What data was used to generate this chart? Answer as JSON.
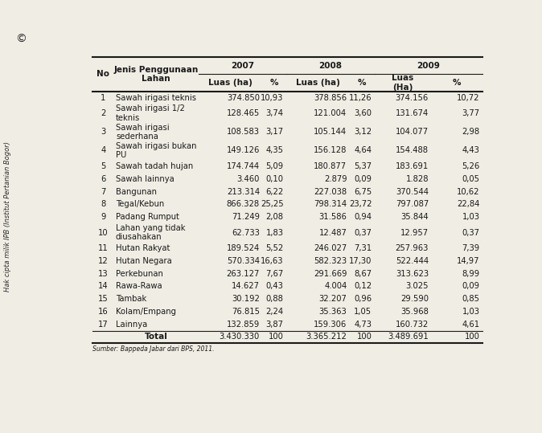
{
  "watermark": "Hak cipta milik IPB (Institut Pertanian Bogor)",
  "copyright_symbol": "©",
  "col_headers_mid": [
    "No",
    "Jenis Penggunaan\nLahan",
    "Luas (ha)",
    "%",
    "Luas (ha)",
    "%",
    "Luas\n(Ha)",
    "%"
  ],
  "rows": [
    [
      "1",
      "Sawah irigasi teknis",
      "374.850",
      "10,93",
      "378.856",
      "11,26",
      "374.156",
      "10,72"
    ],
    [
      "2",
      "Sawah irigasi 1/2\nteknis",
      "128.465",
      "3,74",
      "121.004",
      "3,60",
      "131.674",
      "3,77"
    ],
    [
      "3",
      "Sawah irigasi\nsederhana",
      "108.583",
      "3,17",
      "105.144",
      "3,12",
      "104.077",
      "2,98"
    ],
    [
      "4",
      "Sawah irigasi bukan\nPU",
      "149.126",
      "4,35",
      "156.128",
      "4,64",
      "154.488",
      "4,43"
    ],
    [
      "5",
      "Sawah tadah hujan",
      "174.744",
      "5,09",
      "180.877",
      "5,37",
      "183.691",
      "5,26"
    ],
    [
      "6",
      "Sawah lainnya",
      "3.460",
      "0,10",
      "2.879",
      "0,09",
      "1.828",
      "0,05"
    ],
    [
      "7",
      "Bangunan",
      "213.314",
      "6,22",
      "227.038",
      "6,75",
      "370.544",
      "10,62"
    ],
    [
      "8",
      "Tegal/Kebun",
      "866.328",
      "25,25",
      "798.314",
      "23,72",
      "797.087",
      "22,84"
    ],
    [
      "9",
      "Padang Rumput",
      "71.249",
      "2,08",
      "31.586",
      "0,94",
      "35.844",
      "1,03"
    ],
    [
      "10",
      "Lahan yang tidak\ndiusahakan",
      "62.733",
      "1,83",
      "12.487",
      "0,37",
      "12.957",
      "0,37"
    ],
    [
      "11",
      "Hutan Rakyat",
      "189.524",
      "5,52",
      "246.027",
      "7,31",
      "257.963",
      "7,39"
    ],
    [
      "12",
      "Hutan Negara",
      "570.334",
      "16,63",
      "582.323",
      "17,30",
      "522.444",
      "14,97"
    ],
    [
      "13",
      "Perkebunan",
      "263.127",
      "7,67",
      "291.669",
      "8,67",
      "313.623",
      "8,99"
    ],
    [
      "14",
      "Rawa-Rawa",
      "14.627",
      "0,43",
      "4.004",
      "0,12",
      "3.025",
      "0,09"
    ],
    [
      "15",
      "Tambak",
      "30.192",
      "0,88",
      "32.207",
      "0,96",
      "29.590",
      "0,85"
    ],
    [
      "16",
      "Kolam/Empang",
      "76.815",
      "2,24",
      "35.363",
      "1,05",
      "35.968",
      "1,03"
    ],
    [
      "17",
      "Lainnya",
      "132.859",
      "3,87",
      "159.306",
      "4,73",
      "160.732",
      "4,61"
    ]
  ],
  "total_row": [
    "",
    "Total",
    "3.430.330",
    "100",
    "3.365.212",
    "100",
    "3.489.691",
    "100"
  ],
  "source": "Sumber: Bappeda Jabar dari BPS, 2011.",
  "bg_color": "#f0ede4",
  "text_color": "#1a1a1a",
  "years": [
    "2007",
    "2008",
    "2009"
  ],
  "font_size": 7.2,
  "header_font_size": 7.5
}
